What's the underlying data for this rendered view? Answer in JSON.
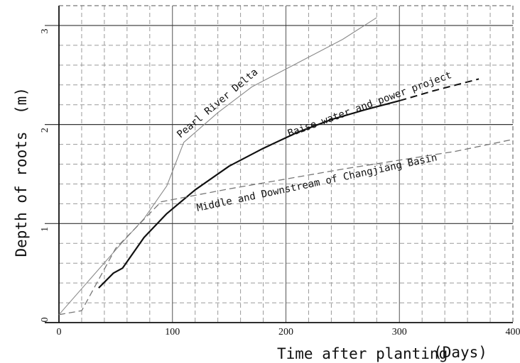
{
  "chart_data": {
    "type": "line",
    "xlabel": "Time after planting",
    "xunit": "(Days)",
    "ylabel": "Depth of roots",
    "yunit": "(m)",
    "xlim": [
      0,
      400
    ],
    "ylim": [
      0,
      3.2
    ],
    "x_ticks": [
      "0",
      "100",
      "200",
      "300",
      "400"
    ],
    "y_ticks": [
      "0",
      "1",
      "2",
      "3"
    ],
    "grid": "dashed minor, solid major",
    "series": [
      {
        "name": "Pearl River Delta",
        "style": "thin solid gray",
        "color": "#8a8a8a",
        "points": [
          [
            0,
            0.08
          ],
          [
            55,
            0.8
          ],
          [
            75,
            1.05
          ],
          [
            95,
            1.38
          ],
          [
            110,
            1.82
          ],
          [
            140,
            2.12
          ],
          [
            170,
            2.38
          ],
          [
            210,
            2.62
          ],
          [
            250,
            2.86
          ],
          [
            280,
            3.08
          ]
        ]
      },
      {
        "name": "Baise water and power project",
        "style": "thick solid black, dashed extension",
        "color": "#111111",
        "points": [
          [
            35,
            0.35
          ],
          [
            48,
            0.5
          ],
          [
            56,
            0.55
          ],
          [
            75,
            0.86
          ],
          [
            95,
            1.1
          ],
          [
            120,
            1.34
          ],
          [
            150,
            1.58
          ],
          [
            180,
            1.76
          ],
          [
            210,
            1.92
          ],
          [
            240,
            2.05
          ],
          [
            270,
            2.15
          ],
          [
            300,
            2.24
          ]
        ],
        "extension": [
          [
            300,
            2.24
          ],
          [
            330,
            2.34
          ],
          [
            370,
            2.46
          ]
        ]
      },
      {
        "name": "Middle and Downstream of Changjiang Basin",
        "style": "dashed gray",
        "color": "#777777",
        "points": [
          [
            0,
            0.08
          ],
          [
            20,
            0.12
          ],
          [
            50,
            0.75
          ],
          [
            90,
            1.22
          ],
          [
            150,
            1.35
          ],
          [
            200,
            1.45
          ],
          [
            250,
            1.55
          ],
          [
            300,
            1.64
          ],
          [
            350,
            1.73
          ],
          [
            400,
            1.85
          ]
        ]
      }
    ]
  }
}
